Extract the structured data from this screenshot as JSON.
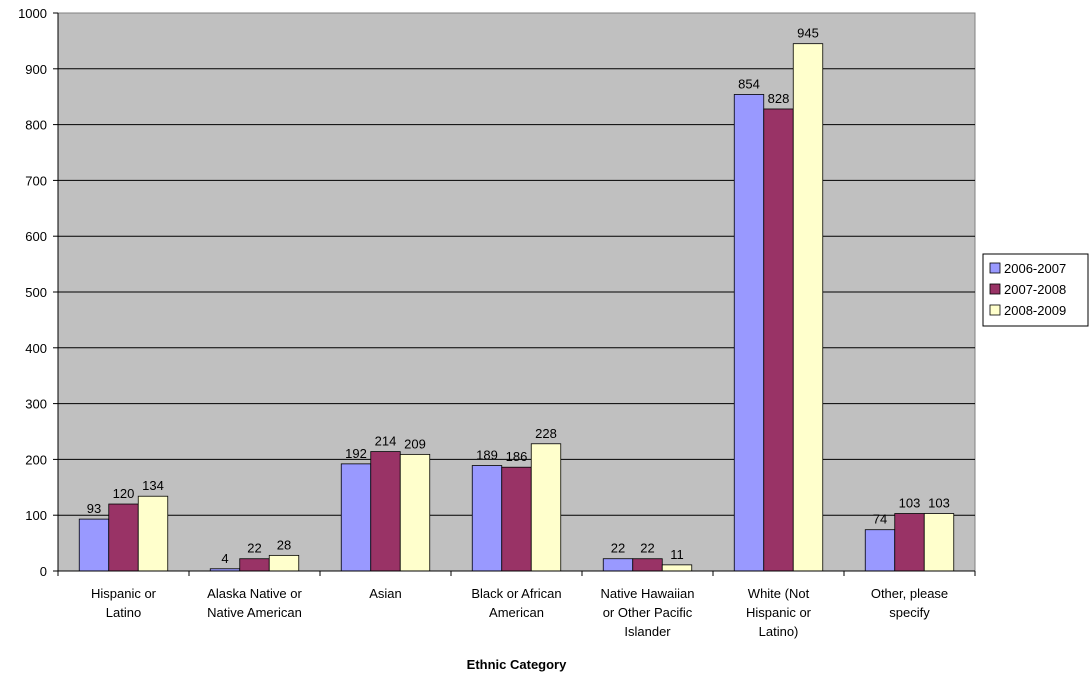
{
  "chart_data": {
    "type": "bar",
    "title": "",
    "xlabel": "Ethnic Category",
    "ylabel": "",
    "ylim": [
      0,
      1000
    ],
    "yticks": [
      "0",
      "100",
      "200",
      "300",
      "400",
      "500",
      "600",
      "700",
      "800",
      "900",
      "1000"
    ],
    "grid": true,
    "legend_position": "right",
    "plot_background": "#C0C0C0",
    "categories": [
      [
        "Hispanic or",
        "Latino"
      ],
      [
        "Alaska Native or",
        "Native American"
      ],
      [
        "Asian"
      ],
      [
        "Black or African",
        "American"
      ],
      [
        "Native Hawaiian",
        "or Other Pacific",
        "Islander"
      ],
      [
        "White (Not",
        "Hispanic or",
        "Latino)"
      ],
      [
        "Other, please",
        "specify"
      ]
    ],
    "series": [
      {
        "name": "2006-2007",
        "color": "#9999FF",
        "values": [
          93,
          4,
          192,
          189,
          22,
          854,
          74
        ]
      },
      {
        "name": "2007-2008",
        "color": "#993366",
        "values": [
          120,
          22,
          214,
          186,
          22,
          828,
          103
        ]
      },
      {
        "name": "2008-2009",
        "color": "#FFFFCC",
        "values": [
          134,
          28,
          209,
          228,
          11,
          945,
          103
        ]
      }
    ]
  }
}
